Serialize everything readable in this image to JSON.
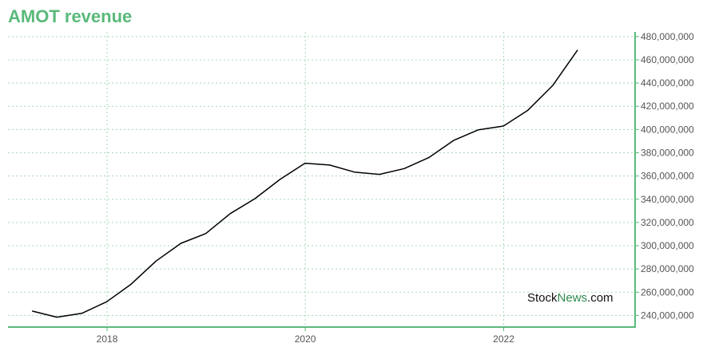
{
  "chart_data": {
    "type": "line",
    "title": "AMOT revenue",
    "xlabel": "",
    "ylabel": "",
    "x": [
      "2017-03-31",
      "2017-06-30",
      "2017-09-30",
      "2017-12-31",
      "2018-03-31",
      "2018-06-30",
      "2018-09-30",
      "2018-12-31",
      "2019-03-31",
      "2019-06-30",
      "2019-09-30",
      "2019-12-31",
      "2020-03-31",
      "2020-06-30",
      "2020-09-30",
      "2020-12-31",
      "2021-03-31",
      "2021-06-30",
      "2021-09-30",
      "2021-12-31",
      "2022-03-31",
      "2022-06-30",
      "2022-09-30"
    ],
    "series": [
      {
        "values": [
          243800000,
          238500000,
          241800000,
          251800000,
          267000000,
          286800000,
          302100000,
          310500000,
          327700000,
          340500000,
          357100000,
          371000000,
          369400000,
          363400000,
          361400000,
          366400000,
          375800000,
          390600000,
          399800000,
          403000000,
          416600000,
          437700000,
          468400000
        ]
      }
    ],
    "x_ticks": [
      "2018",
      "2020",
      "2022"
    ],
    "y_ticks": [
      "240,000,000",
      "260,000,000",
      "280,000,000",
      "300,000,000",
      "320,000,000",
      "340,000,000",
      "360,000,000",
      "380,000,000",
      "400,000,000",
      "420,000,000",
      "440,000,000",
      "460,000,000",
      "480,000,000"
    ],
    "ylim": [
      230000000,
      484000000
    ],
    "xlim": [
      "2017-01-01",
      "2023-04-30"
    ],
    "grid": true,
    "y_axis_position": "right",
    "colors": {
      "line": "#000000",
      "axis": "#5ab97a",
      "grid": "#a8d8b8",
      "title": "#5ab97a"
    }
  },
  "watermark": {
    "part1": "Stock",
    "part2": "News",
    "part3": ".com"
  }
}
